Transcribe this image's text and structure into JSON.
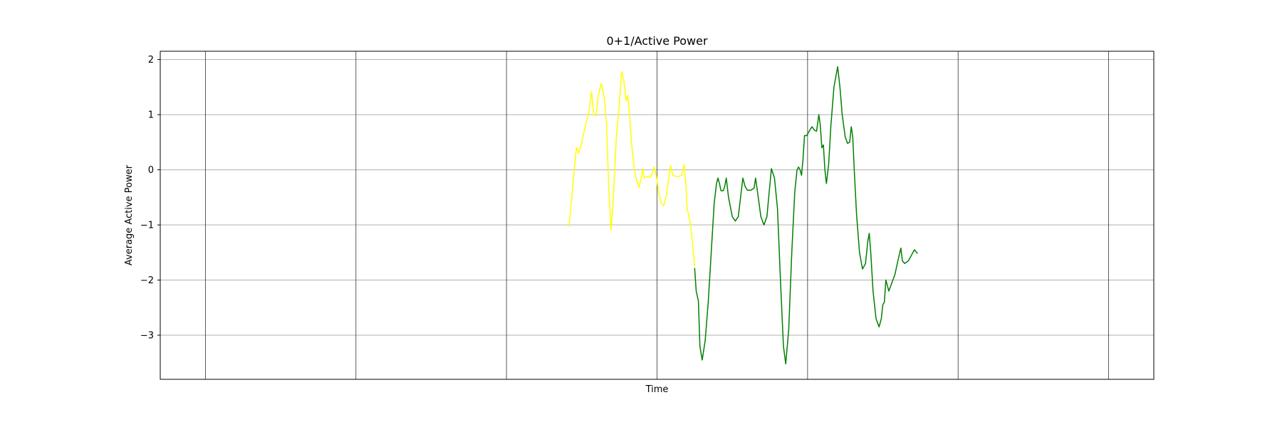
{
  "chart_data": {
    "type": "line",
    "title": "0+1/Active Power",
    "xlabel": "Time",
    "ylabel": "Average Active Power",
    "xlim": [
      -0.6,
      12.6
    ],
    "ylim": [
      -3.8,
      2.15
    ],
    "yticks": [
      2,
      1,
      0,
      -1,
      -2,
      -3
    ],
    "xgrid": [
      0,
      2,
      4,
      6,
      8,
      10,
      12
    ],
    "grid": true,
    "series": [
      {
        "color": "#ffff00",
        "points": [
          [
            4.83,
            -1.03
          ],
          [
            4.86,
            -0.6
          ],
          [
            4.9,
            0.0
          ],
          [
            4.93,
            0.4
          ],
          [
            4.96,
            0.3
          ],
          [
            5.0,
            0.5
          ],
          [
            5.05,
            0.8
          ],
          [
            5.1,
            1.1
          ],
          [
            5.13,
            1.42
          ],
          [
            5.16,
            1.0
          ],
          [
            5.19,
            0.98
          ],
          [
            5.22,
            1.35
          ],
          [
            5.26,
            1.57
          ],
          [
            5.3,
            1.3
          ],
          [
            5.33,
            0.8
          ],
          [
            5.36,
            -0.4
          ],
          [
            5.39,
            -1.1
          ],
          [
            5.42,
            -0.5
          ],
          [
            5.46,
            0.6
          ],
          [
            5.5,
            1.2
          ],
          [
            5.53,
            1.78
          ],
          [
            5.56,
            1.6
          ],
          [
            5.59,
            1.25
          ],
          [
            5.61,
            1.35
          ],
          [
            5.63,
            1.1
          ],
          [
            5.66,
            0.5
          ],
          [
            5.7,
            0.0
          ],
          [
            5.73,
            -0.2
          ],
          [
            5.76,
            -0.32
          ],
          [
            5.79,
            -0.15
          ],
          [
            5.81,
            0.02
          ],
          [
            5.83,
            -0.15
          ],
          [
            5.87,
            -0.12
          ],
          [
            5.9,
            -0.14
          ],
          [
            5.93,
            -0.1
          ],
          [
            5.96,
            0.05
          ],
          [
            5.99,
            -0.1
          ],
          [
            6.02,
            -0.4
          ],
          [
            6.06,
            -0.62
          ],
          [
            6.09,
            -0.65
          ],
          [
            6.12,
            -0.5
          ],
          [
            6.15,
            -0.2
          ],
          [
            6.18,
            0.08
          ],
          [
            6.21,
            -0.1
          ],
          [
            6.25,
            -0.12
          ],
          [
            6.29,
            -0.12
          ],
          [
            6.33,
            -0.1
          ],
          [
            6.36,
            0.1
          ],
          [
            6.38,
            -0.2
          ],
          [
            6.4,
            -0.7
          ],
          [
            6.44,
            -0.95
          ],
          [
            6.47,
            -1.3
          ],
          [
            6.5,
            -1.75
          ]
        ]
      },
      {
        "color": "#008000",
        "points": [
          [
            6.5,
            -1.78
          ],
          [
            6.52,
            -2.2
          ],
          [
            6.55,
            -2.38
          ],
          [
            6.57,
            -3.2
          ],
          [
            6.6,
            -3.45
          ],
          [
            6.64,
            -3.1
          ],
          [
            6.68,
            -2.4
          ],
          [
            6.72,
            -1.5
          ],
          [
            6.76,
            -0.6
          ],
          [
            6.79,
            -0.25
          ],
          [
            6.81,
            -0.15
          ],
          [
            6.83,
            -0.25
          ],
          [
            6.85,
            -0.38
          ],
          [
            6.88,
            -0.38
          ],
          [
            6.9,
            -0.3
          ],
          [
            6.92,
            -0.15
          ],
          [
            6.95,
            -0.5
          ],
          [
            7.0,
            -0.85
          ],
          [
            7.04,
            -0.93
          ],
          [
            7.08,
            -0.85
          ],
          [
            7.11,
            -0.5
          ],
          [
            7.14,
            -0.15
          ],
          [
            7.17,
            -0.3
          ],
          [
            7.2,
            -0.37
          ],
          [
            7.25,
            -0.37
          ],
          [
            7.29,
            -0.33
          ],
          [
            7.31,
            -0.15
          ],
          [
            7.34,
            -0.45
          ],
          [
            7.38,
            -0.85
          ],
          [
            7.42,
            -1.0
          ],
          [
            7.46,
            -0.85
          ],
          [
            7.49,
            -0.4
          ],
          [
            7.52,
            0.02
          ],
          [
            7.56,
            -0.15
          ],
          [
            7.6,
            -0.7
          ],
          [
            7.64,
            -2.0
          ],
          [
            7.68,
            -3.2
          ],
          [
            7.71,
            -3.52
          ],
          [
            7.75,
            -2.9
          ],
          [
            7.79,
            -1.5
          ],
          [
            7.83,
            -0.4
          ],
          [
            7.86,
            0.0
          ],
          [
            7.88,
            0.05
          ],
          [
            7.9,
            0.0
          ],
          [
            7.92,
            -0.1
          ],
          [
            7.94,
            0.2
          ],
          [
            7.96,
            0.62
          ],
          [
            7.99,
            0.62
          ],
          [
            8.03,
            0.72
          ],
          [
            8.06,
            0.78
          ],
          [
            8.09,
            0.72
          ],
          [
            8.12,
            0.7
          ],
          [
            8.15,
            1.0
          ],
          [
            8.17,
            0.8
          ],
          [
            8.19,
            0.4
          ],
          [
            8.21,
            0.45
          ],
          [
            8.23,
            0.0
          ],
          [
            8.25,
            -0.25
          ],
          [
            8.28,
            0.1
          ],
          [
            8.31,
            0.8
          ],
          [
            8.35,
            1.5
          ],
          [
            8.4,
            1.87
          ],
          [
            8.43,
            1.5
          ],
          [
            8.46,
            1.0
          ],
          [
            8.5,
            0.6
          ],
          [
            8.53,
            0.48
          ],
          [
            8.56,
            0.5
          ],
          [
            8.58,
            0.78
          ],
          [
            8.6,
            0.6
          ],
          [
            8.62,
            0.0
          ],
          [
            8.65,
            -0.8
          ],
          [
            8.69,
            -1.5
          ],
          [
            8.73,
            -1.8
          ],
          [
            8.77,
            -1.7
          ],
          [
            8.8,
            -1.3
          ],
          [
            8.82,
            -1.15
          ],
          [
            8.84,
            -1.5
          ],
          [
            8.87,
            -2.2
          ],
          [
            8.91,
            -2.7
          ],
          [
            8.95,
            -2.85
          ],
          [
            8.98,
            -2.7
          ],
          [
            9.0,
            -2.45
          ],
          [
            9.02,
            -2.4
          ],
          [
            9.04,
            -2.0
          ],
          [
            9.06,
            -2.1
          ],
          [
            9.08,
            -2.2
          ],
          [
            9.12,
            -2.05
          ],
          [
            9.16,
            -1.9
          ],
          [
            9.2,
            -1.65
          ],
          [
            9.24,
            -1.42
          ],
          [
            9.26,
            -1.65
          ],
          [
            9.29,
            -1.7
          ],
          [
            9.34,
            -1.65
          ],
          [
            9.38,
            -1.55
          ],
          [
            9.42,
            -1.45
          ],
          [
            9.46,
            -1.52
          ]
        ]
      }
    ]
  }
}
